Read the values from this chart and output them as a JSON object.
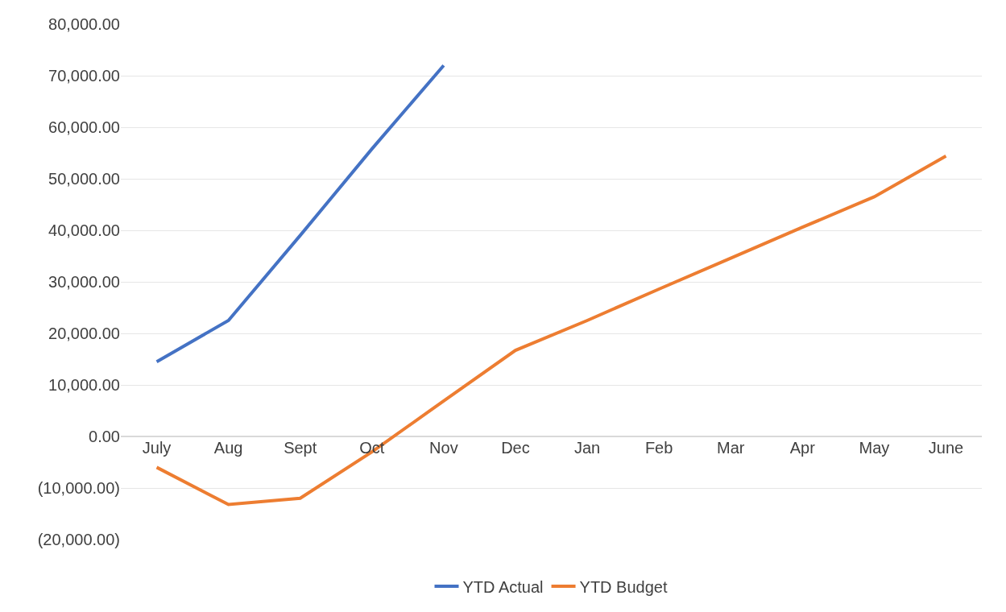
{
  "chart_data": {
    "type": "line",
    "categories": [
      "July",
      "Aug",
      "Sept",
      "Oct",
      "Nov",
      "Dec",
      "Jan",
      "Feb",
      "Mar",
      "Apr",
      "May",
      "June"
    ],
    "series": [
      {
        "name": "YTD Actual",
        "color": "#4472c4",
        "values": [
          14500,
          22500,
          39000,
          55800,
          72000,
          null,
          null,
          null,
          null,
          null,
          null,
          null
        ]
      },
      {
        "name": "YTD Budget",
        "color": "#ed7d31",
        "values": [
          -6000,
          -13200,
          -12000,
          -3000,
          6900,
          16700,
          22500,
          28600,
          34600,
          40600,
          46500,
          54400
        ]
      }
    ],
    "ylim": [
      -20000,
      80000
    ],
    "yticks": [
      {
        "value": -20000,
        "label": "(20,000.00)"
      },
      {
        "value": -10000,
        "label": "(10,000.00)"
      },
      {
        "value": 0,
        "label": "0.00"
      },
      {
        "value": 10000,
        "label": "10,000.00"
      },
      {
        "value": 20000,
        "label": "20,000.00"
      },
      {
        "value": 30000,
        "label": "30,000.00"
      },
      {
        "value": 40000,
        "label": "40,000.00"
      },
      {
        "value": 50000,
        "label": "50,000.00"
      },
      {
        "value": 60000,
        "label": "60,000.00"
      },
      {
        "value": 70000,
        "label": "70,000.00"
      },
      {
        "value": 80000,
        "label": "80,000.00"
      }
    ],
    "grid": "y",
    "legend": "bottom",
    "marker": "none",
    "line_style": "solid"
  }
}
